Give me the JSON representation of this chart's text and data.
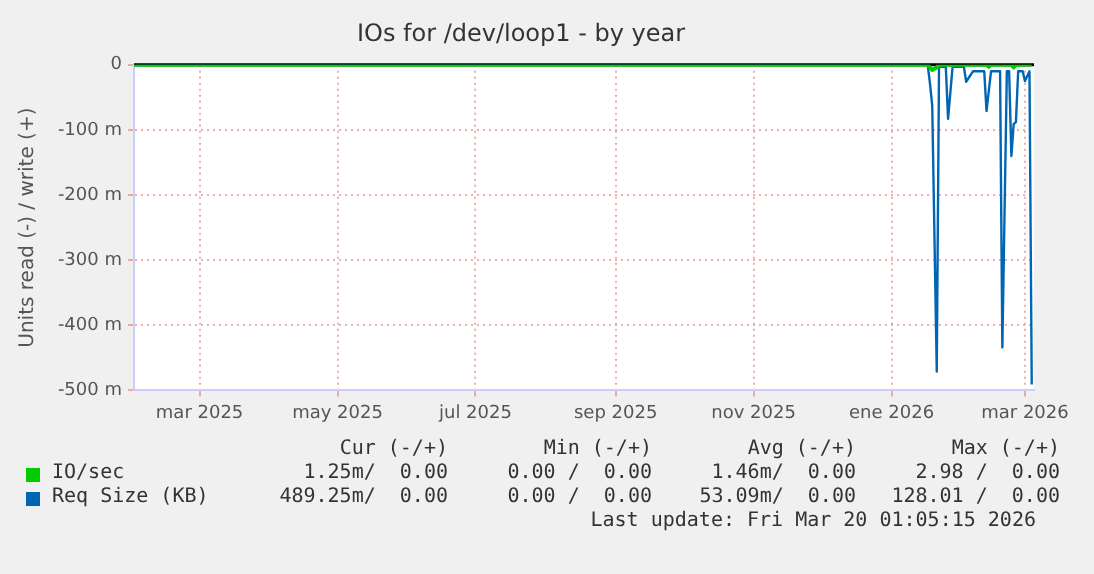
{
  "chart_data": {
    "type": "line",
    "title": "IOs for /dev/loop1 - by year",
    "ylabel": "Units read (-) / write (+)",
    "xlim": [
      "2025-01-31",
      "2026-03-05"
    ],
    "xticks": [
      {
        "value": "2025-03-01",
        "label": "mar 2025"
      },
      {
        "value": "2025-05-01",
        "label": "may 2025"
      },
      {
        "value": "2025-07-01",
        "label": "jul 2025"
      },
      {
        "value": "2025-09-01",
        "label": "sep 2025"
      },
      {
        "value": "2025-11-01",
        "label": "nov 2025"
      },
      {
        "value": "2026-01-01",
        "label": "ene 2026"
      },
      {
        "value": "2026-03-01",
        "label": "mar 2026"
      }
    ],
    "ylim": [
      -500,
      0
    ],
    "yticks": [
      0,
      {
        "value": -100,
        "label": "-100 m"
      },
      {
        "value": -200,
        "label": "-200 m"
      },
      {
        "value": -300,
        "label": "-300 m"
      },
      {
        "value": -400,
        "label": "-400 m"
      },
      {
        "value": -500,
        "label": "-500 m"
      }
    ],
    "grid": true,
    "legend": "bottom left",
    "marker": "none",
    "line_style": "solid",
    "ref_lines": [
      {
        "axis": "y",
        "value": 0,
        "color": "#000000"
      }
    ],
    "series": [
      {
        "name": "IO/sec",
        "color": "#00cc00",
        "x": [
          "2025-01-31",
          "2026-01-17",
          "2026-01-19",
          "2026-01-21",
          "2026-01-22",
          "2026-02-12",
          "2026-02-13",
          "2026-02-14",
          "2026-02-23",
          "2026-02-24",
          "2026-02-25",
          "2026-03-04"
        ],
        "values": [
          0,
          0,
          -8,
          -4,
          0,
          0,
          -3,
          0,
          0,
          -4,
          0,
          0
        ]
      },
      {
        "name": "Req Size (KB)",
        "color": "#0066b3",
        "x": [
          "2025-01-31",
          "2026-01-17",
          "2026-01-18",
          "2026-01-19",
          "2026-01-21",
          "2026-01-22",
          "2026-01-25",
          "2026-01-26",
          "2026-01-28",
          "2026-02-02",
          "2026-02-03",
          "2026-02-06",
          "2026-02-11",
          "2026-02-12",
          "2026-02-14",
          "2026-02-18",
          "2026-02-19",
          "2026-02-21",
          "2026-02-22",
          "2026-02-23",
          "2026-02-24",
          "2026-02-25",
          "2026-02-26",
          "2026-02-28",
          "2026-03-01",
          "2026-03-03",
          "2026-03-04"
        ],
        "values": [
          0,
          0,
          -29,
          -63,
          -471,
          -3,
          -3,
          -83,
          -3,
          -3,
          -26,
          -10,
          -10,
          -71,
          -10,
          -10,
          -434,
          -10,
          -10,
          -140,
          -91,
          -88,
          -10,
          -10,
          -25,
          -10,
          -491
        ]
      }
    ],
    "annotations": [
      "Cur (-/+)",
      "Min (-/+)",
      "Avg (-/+)",
      "Max (-/+)",
      "1.25m/  0.00",
      "0.00 /  0.00",
      "1.46m/  0.00",
      "2.98 /  0.00",
      "489.25m/  0.00",
      "0.00 /  0.00",
      "53.09m/  0.00",
      "128.01 /  0.00",
      "Last update: Fri Mar 20 01:05:15 2026"
    ]
  }
}
